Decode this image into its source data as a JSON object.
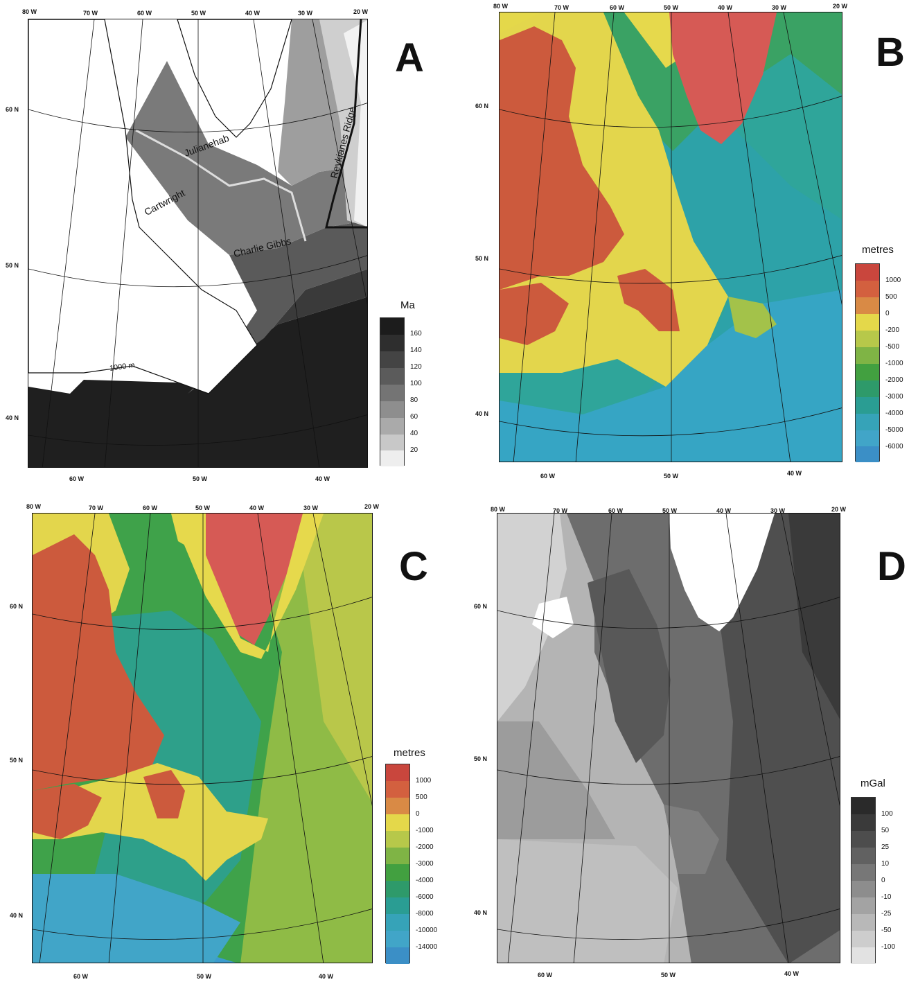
{
  "panels": [
    {
      "id": "A",
      "label": "A",
      "top_lons": [
        "80 W",
        "70 W",
        "60 W",
        "50 W",
        "40 W",
        "30 W",
        "20 W"
      ],
      "bottom_lons": [
        "60 W",
        "50 W",
        "40 W"
      ],
      "lats": [
        "60 N",
        "50 N",
        "40 N"
      ],
      "legend": {
        "title": "Ma",
        "labels": [
          "160",
          "140",
          "120",
          "100",
          "80",
          "60",
          "40",
          "20"
        ],
        "colors": [
          "#1c1c1c",
          "#2e2e2e",
          "#444444",
          "#5b5b5b",
          "#747474",
          "#8e8e8e",
          "#aaaaaa",
          "#c8c8c8",
          "#eeeeee"
        ]
      },
      "map_labels": {
        "julianehab": "Julianehab",
        "cartwright": "Cartwright",
        "charlie_gibbs": "Charlie Gibbs",
        "reykjanes": "Reykjanes Ridge",
        "contour": "1000 m"
      }
    },
    {
      "id": "B",
      "label": "B",
      "top_lons": [
        "80 W",
        "70 W",
        "60 W",
        "50 W",
        "40 W",
        "30 W",
        "20 W"
      ],
      "bottom_lons": [
        "60 W",
        "50 W",
        "40 W"
      ],
      "lats": [
        "60 N",
        "50 N",
        "40 N"
      ],
      "legend": {
        "title": "metres",
        "labels": [
          "1000",
          "500",
          "0",
          "-200",
          "-500",
          "-1000",
          "-2000",
          "-3000",
          "-4000",
          "-5000",
          "-6000"
        ],
        "colors": [
          "#c9463d",
          "#d3603f",
          "#d98a45",
          "#e4d84a",
          "#b7c84a",
          "#7fb445",
          "#42a040",
          "#2e9a6a",
          "#2a9d93",
          "#36a3b8",
          "#41a5c8",
          "#3b8fc6"
        ]
      }
    },
    {
      "id": "C",
      "label": "C",
      "top_lons": [
        "80 W",
        "70 W",
        "60 W",
        "50 W",
        "40 W",
        "30 W",
        "20 W"
      ],
      "bottom_lons": [
        "60 W",
        "50 W",
        "40 W"
      ],
      "lats": [
        "60 N",
        "50 N",
        "40 N"
      ],
      "legend": {
        "title": "metres",
        "labels": [
          "1000",
          "500",
          "0",
          "-1000",
          "-2000",
          "-3000",
          "-4000",
          "-6000",
          "-8000",
          "-10000",
          "-14000"
        ],
        "colors": [
          "#c9463d",
          "#d3603f",
          "#d98a45",
          "#e4d84a",
          "#b7c84a",
          "#7fb445",
          "#42a040",
          "#2e9a6a",
          "#2a9d93",
          "#36a3b8",
          "#41a5c8",
          "#3b8fc6"
        ]
      }
    },
    {
      "id": "D",
      "label": "D",
      "top_lons": [
        "80 W",
        "70 W",
        "60 W",
        "50 W",
        "40 W",
        "30 W",
        "20 W"
      ],
      "bottom_lons": [
        "60 W",
        "50 W",
        "40 W"
      ],
      "lats": [
        "60 N",
        "50 N",
        "40 N"
      ],
      "legend": {
        "title": "mGal",
        "labels": [
          "100",
          "50",
          "25",
          "10",
          "0",
          "-10",
          "-25",
          "-50",
          "-100"
        ],
        "colors": [
          "#2a2a2a",
          "#3a3a3a",
          "#4d4d4d",
          "#616161",
          "#777777",
          "#8d8d8d",
          "#a3a3a3",
          "#b8b8b8",
          "#cdcdcd",
          "#e2e2e2"
        ]
      }
    }
  ]
}
